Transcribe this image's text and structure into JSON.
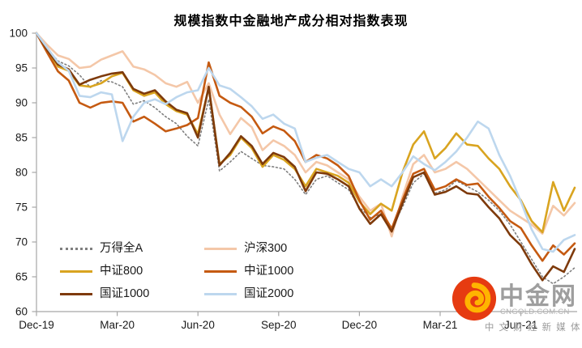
{
  "title": "规模指数中金融地产成分相对指数表现",
  "watermark": {
    "name": "中金网",
    "domain": "CNGOLD.COM.CN",
    "tagline": "中 文 财 经 新 媒 体"
  },
  "colors": {
    "axis": "#a6a6a6",
    "text": "#1a1a1a",
    "logo_red": "#e63b11",
    "logo_gold": "#ffb400"
  },
  "chart_data": {
    "type": "line",
    "title": "规模指数中金融地产成分相对指数表现",
    "xlabel": "",
    "ylabel": "",
    "ylim": [
      60,
      100
    ],
    "y_ticks": [
      100,
      95,
      90,
      85,
      80,
      75,
      70,
      65,
      60
    ],
    "x_unit": "months since Dec-2019",
    "x_ticks": [
      {
        "t": 0,
        "label": "Dec-19"
      },
      {
        "t": 3,
        "label": "Mar-20"
      },
      {
        "t": 6,
        "label": "Jun-20"
      },
      {
        "t": 9,
        "label": "Sep-20"
      },
      {
        "t": 12,
        "label": "Dec-20"
      },
      {
        "t": 15,
        "label": "Mar-21"
      },
      {
        "t": 18,
        "label": "Jun-21"
      }
    ],
    "grid": false,
    "legend_position": "inside-lower-left, 2 columns, order: 万得全A/沪深300, 中证800/中证1000, 国证1000/国证2000",
    "x": [
      0,
      0.4,
      0.8,
      1.2,
      1.6,
      2.0,
      2.4,
      2.8,
      3.2,
      3.6,
      4.0,
      4.4,
      4.8,
      5.2,
      5.6,
      6.0,
      6.4,
      6.8,
      7.2,
      7.6,
      8.0,
      8.4,
      8.8,
      9.2,
      9.6,
      10.0,
      10.4,
      10.8,
      11.2,
      11.6,
      12.0,
      12.4,
      12.8,
      13.2,
      13.6,
      14.0,
      14.4,
      14.8,
      15.2,
      15.6,
      16.0,
      16.4,
      16.8,
      17.2,
      17.6,
      18.0,
      18.4,
      18.8,
      19.2,
      19.6,
      20.0
    ],
    "series": [
      {
        "name": "万得全A",
        "color": "#7f7f7f",
        "style": "dotted",
        "values": [
          100,
          97.8,
          96.0,
          95.3,
          94.0,
          92.2,
          93.2,
          93.0,
          92.3,
          89.8,
          90.3,
          89.3,
          88.0,
          87.0,
          85.2,
          83.8,
          90.5,
          80.2,
          81.5,
          83.0,
          82.0,
          81.0,
          80.8,
          80.5,
          79.0,
          76.8,
          79.0,
          79.5,
          78.5,
          77.5,
          75.0,
          73.5,
          74.0,
          72.0,
          75.0,
          78.5,
          79.8,
          77.0,
          77.5,
          78.8,
          78.0,
          77.2,
          76.0,
          74.5,
          72.5,
          70.0,
          67.5,
          65.0,
          64.0,
          65.0,
          66.3
        ]
      },
      {
        "name": "沪深300",
        "color": "#f4c7a8",
        "style": "solid",
        "values": [
          100,
          98.3,
          96.8,
          96.3,
          95.0,
          95.2,
          96.2,
          96.8,
          97.4,
          95.2,
          94.8,
          94.0,
          92.8,
          92.3,
          93.0,
          90.0,
          92.8,
          88.3,
          85.5,
          87.8,
          86.5,
          83.2,
          84.6,
          83.8,
          82.5,
          80.0,
          81.5,
          81.0,
          80.0,
          79.0,
          76.5,
          74.5,
          75.5,
          70.8,
          76.5,
          81.2,
          82.5,
          80.0,
          80.5,
          81.5,
          80.5,
          79.0,
          77.5,
          76.0,
          74.5,
          73.5,
          72.5,
          71.2,
          75.2,
          73.8,
          75.6
        ]
      },
      {
        "name": "中证800",
        "color": "#d9a420",
        "style": "solid",
        "values": [
          100,
          97.5,
          95.2,
          94.6,
          92.5,
          92.3,
          92.8,
          93.8,
          94.3,
          91.8,
          91.0,
          91.5,
          89.8,
          88.8,
          88.3,
          85.5,
          92.2,
          81.2,
          82.5,
          85.0,
          83.5,
          80.8,
          82.5,
          81.8,
          80.5,
          78.0,
          80.5,
          80.0,
          79.5,
          78.5,
          75.8,
          74.0,
          75.5,
          74.5,
          80.0,
          84.0,
          85.9,
          82.0,
          83.5,
          85.6,
          84.0,
          83.8,
          82.0,
          80.5,
          78.0,
          76.0,
          73.0,
          71.4,
          78.6,
          74.5,
          77.8
        ]
      },
      {
        "name": "中证1000",
        "color": "#c55a11",
        "style": "solid",
        "values": [
          100,
          97.2,
          94.5,
          93.2,
          90.0,
          89.3,
          90.0,
          90.2,
          90.0,
          87.3,
          88.0,
          87.0,
          85.9,
          86.3,
          86.8,
          87.8,
          95.8,
          91.0,
          90.0,
          89.4,
          88.0,
          85.6,
          86.6,
          86.0,
          84.5,
          81.5,
          82.5,
          82.0,
          81.0,
          79.5,
          76.0,
          73.2,
          74.5,
          71.9,
          76.0,
          79.8,
          80.5,
          77.5,
          78.0,
          79.0,
          78.2,
          78.4,
          76.5,
          74.9,
          73.0,
          72.0,
          69.5,
          67.3,
          69.5,
          68.2,
          69.8
        ]
      },
      {
        "name": "国证1000",
        "color": "#7e3a0b",
        "style": "solid",
        "values": [
          100,
          97.6,
          95.5,
          94.8,
          92.6,
          93.3,
          93.8,
          94.2,
          94.4,
          92.0,
          91.3,
          91.8,
          90.2,
          89.0,
          88.5,
          85.0,
          92.3,
          81.0,
          82.8,
          85.2,
          83.8,
          81.2,
          82.8,
          82.2,
          80.8,
          77.3,
          80.0,
          79.8,
          79.0,
          78.0,
          74.8,
          72.6,
          74.0,
          71.5,
          75.5,
          79.3,
          80.0,
          76.8,
          77.2,
          78.0,
          77.0,
          76.8,
          75.0,
          73.4,
          71.0,
          69.5,
          66.8,
          64.5,
          66.5,
          65.7,
          69.0
        ]
      },
      {
        "name": "国证2000",
        "color": "#bdd7ee",
        "style": "solid",
        "values": [
          100,
          97.9,
          95.8,
          94.6,
          91.0,
          90.8,
          91.5,
          91.2,
          84.5,
          88.0,
          90.0,
          90.5,
          89.8,
          90.8,
          91.5,
          91.8,
          95.0,
          92.5,
          92.0,
          90.8,
          89.5,
          87.7,
          88.3,
          87.0,
          86.3,
          81.5,
          82.1,
          82.5,
          81.5,
          80.5,
          80.0,
          78.0,
          79.0,
          78.0,
          80.0,
          82.3,
          81.2,
          80.3,
          81.5,
          83.0,
          85.0,
          87.3,
          86.3,
          82.5,
          79.5,
          75.8,
          71.8,
          69.0,
          68.6,
          70.3,
          71.0
        ]
      }
    ]
  }
}
